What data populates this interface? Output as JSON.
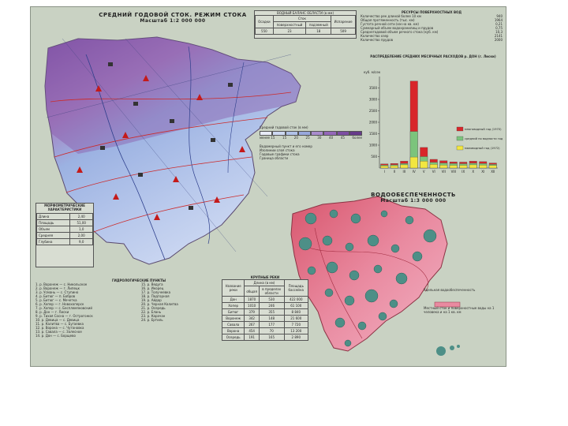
{
  "map_left": {
    "title": "СРЕДНИЙ ГОДОВОЙ СТОК.   РЕЖИМ СТОКА",
    "scale": "Масштаб 1:2 000 000"
  },
  "map_right": {
    "title": "ВОДООБЕСПЕЧЕННОСТЬ",
    "scale": "Масштаб 1:3 000 000"
  },
  "water_balance": {
    "title": "ВОДНЫЙ БАЛАНС ОБЛАСТИ (в мм)",
    "headers": [
      "Осадки",
      "Сток",
      "",
      "Испарение"
    ],
    "subheaders": [
      "поверхностный",
      "подземный"
    ],
    "values": [
      "550",
      "23",
      "18",
      "509"
    ]
  },
  "resources": {
    "title": "РЕСУРСЫ ПОВЕРХНОСТНЫХ ВОД",
    "rows": [
      [
        "Количество рек длиной более 10 км",
        "940"
      ],
      [
        "Общая протяженность (тыс. км)",
        "1964"
      ],
      [
        "Густота речной сети (км на кв. км)",
        "0,21"
      ],
      [
        "Суммарный объем водохранилищ и прудов",
        "0,75"
      ],
      [
        "Среднегодовой объем речного стока (куб. км)",
        "10,3"
      ],
      [
        "Количество озер",
        "2141"
      ],
      [
        "Количество прудов",
        "2000"
      ]
    ]
  },
  "legend_runoff": {
    "title": "Средний годовой сток (в мм)",
    "values": [
      "менее 15",
      "15",
      "20",
      "25",
      "30",
      "40",
      "45",
      "более"
    ]
  },
  "legend_notes": [
    "Водомерный пункт и его номер",
    "Изолинии слоя стока",
    "Годовые графики стока",
    "Граница области"
  ],
  "morph_table": {
    "title": "МОРФОМЕТРИЧЕСКИЕ ХАРАКТЕРИСТИКИ",
    "rows": [
      [
        "Длина",
        "2,40"
      ],
      [
        "Площадь",
        "51,00"
      ],
      [
        "Объем",
        "1,0"
      ],
      [
        "Средняя",
        "2,00"
      ],
      [
        "Глубина",
        "9,0"
      ]
    ]
  },
  "stations": {
    "title": "ГИДРОЛОГИЧЕСКИЕ ПУНКТЫ",
    "items": [
      "1. р. Воронеж — с. Никольское",
      "2. р. Воронеж — г. Липецк",
      "3. р. Усмань — с. Ступино",
      "4. р. Битюг — п. Бобров",
      "5. р. Битюг — с. Мечетка",
      "6. р. Хопер — г. Новохоперск",
      "7. р. Хопер — с. Бесплемяновский",
      "8. р. Дон — г. Лиски",
      "9. р. Тихая Сосна — г. Острогожск",
      "10. р. Девица — с. Девица",
      "11. р. Калитва — с. Бугаевка",
      "12. р. Ворона — с. Чутановка",
      "13. р. Савала — с. Залесное",
      "14. р. Дон — с. Борщево"
    ],
    "items_right": [
      "15. р. Ведуга",
      "16. р. Икорец",
      "17. р. Толучеевка",
      "18. р. Подгорная",
      "19. р. Айдар",
      "20. р. Черная Калитва",
      "21. р. Осередь",
      "22. р. Елань",
      "23. р. Карачан",
      "24. р. Ертиль"
    ]
  },
  "rivers_table": {
    "title": "КРУПНЫЕ РЕКИ",
    "headers": [
      "Название реки",
      "Длина (в км)",
      "",
      "Площадь бассейна"
    ],
    "subheaders": [
      "общая",
      "в пределах области"
    ],
    "rows": [
      [
        "Дон",
        "1870",
        "530",
        "422 000"
      ],
      [
        "Хопер",
        "1010",
        "246",
        "61 100"
      ],
      [
        "Битюг",
        "379",
        "355",
        "8 840"
      ],
      [
        "Воронеж",
        "342",
        "148",
        "21 600"
      ],
      [
        "Савала",
        "267",
        "177",
        "7 720"
      ],
      [
        "Ворона",
        "454",
        "70",
        "13 200"
      ],
      [
        "Осередь",
        "191",
        "165",
        "2 890"
      ]
    ]
  },
  "monthly_chart": {
    "title": "РАСПРЕДЕЛЕНИЕ СРЕДНИХ МЕСЯЧНЫХ РАСХОДОВ р. ДОН (г. Лиски)",
    "ylabel": "куб. м/сек"
  },
  "chart_data": {
    "type": "bar",
    "categories": [
      "I",
      "II",
      "III",
      "IV",
      "V",
      "VI",
      "VII",
      "VIII",
      "IX",
      "X",
      "XI",
      "XII"
    ],
    "ylim": [
      0,
      4000
    ],
    "yticks": [
      "500",
      "1000",
      "1500",
      "2000",
      "2500",
      "3000",
      "3500"
    ],
    "series": [
      {
        "name": "многоводный год (1970)",
        "color": "#d8262a",
        "values": [
          180,
          200,
          300,
          3800,
          900,
          380,
          320,
          270,
          260,
          300,
          280,
          220
        ]
      },
      {
        "name": "средний по водности год",
        "color": "#7cc47c",
        "values": [
          130,
          140,
          200,
          1600,
          500,
          250,
          220,
          200,
          190,
          210,
          200,
          160
        ]
      },
      {
        "name": "маловодный год (1972)",
        "color": "#f2e640",
        "values": [
          90,
          100,
          140,
          480,
          300,
          160,
          130,
          120,
          120,
          140,
          130,
          110
        ]
      }
    ],
    "legend_position": "right"
  },
  "supply_legend": {
    "title": "Удельная водообеспеченность",
    "note": "Местный сток и поверхностные воды на 1 человека и на 1 кв. км"
  },
  "colors": {
    "purple": "#9b6bb8",
    "blue": "#9fb4e0",
    "pink": "#e7788f",
    "circle": "#4d8f87",
    "red_station": "#c41a1a"
  }
}
